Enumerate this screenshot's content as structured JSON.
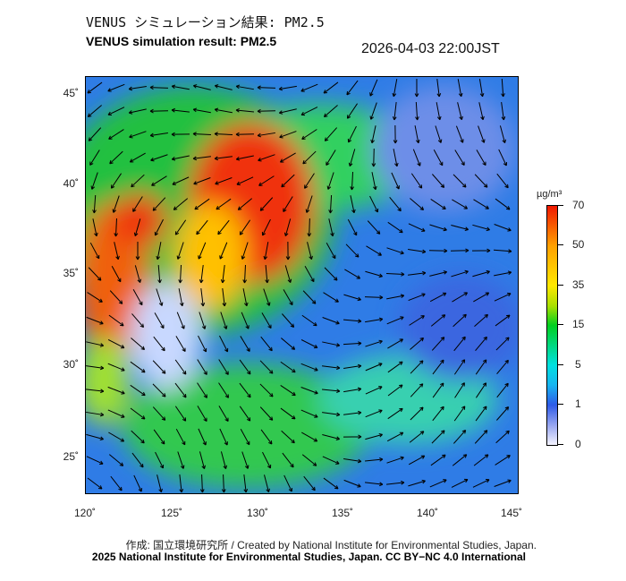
{
  "title_ja": "VENUS シミュレーション結果: PM2.5",
  "title_en": "VENUS simulation result: PM2.5",
  "timestamp": "2026-04-03 22:00JST",
  "lat_labels": [
    "45˚",
    "40˚",
    "35˚",
    "30˚",
    "25˚"
  ],
  "lon_labels": [
    "120˚",
    "125˚",
    "130˚",
    "135˚",
    "140˚",
    "145˚"
  ],
  "colorbar": {
    "unit": "µg/m³",
    "ticks": [
      "70",
      "50",
      "35",
      "15",
      "5",
      "1",
      "0"
    ]
  },
  "credit_line1": "作成: 国立環境研究所 / Created by National Institute for Environmental Studies, Japan.",
  "credit_line2": "2025 National Institute for Environmental Studies, Japan. CC BY−NC 4.0 International"
}
